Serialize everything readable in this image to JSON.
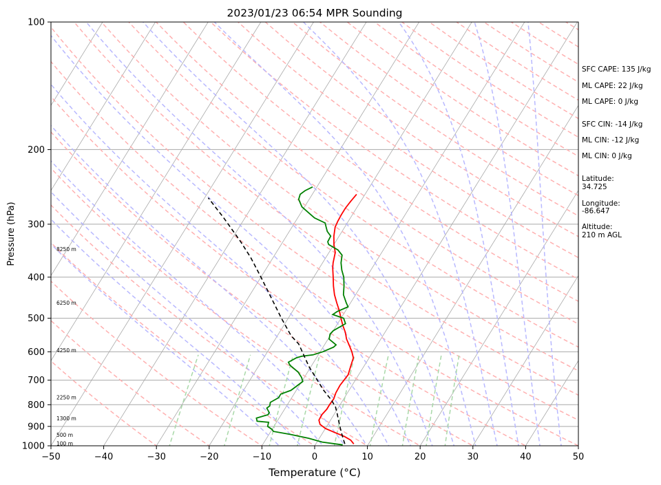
{
  "chart_data": {
    "type": "line",
    "subtype": "skew-t log-p sounding",
    "title": "2023/01/23 06:54 MPR Sounding",
    "xlabel": "Temperature (°C)",
    "ylabel": "Pressure (hPa)",
    "xlim": [
      -50,
      50
    ],
    "ylim": [
      1000,
      100
    ],
    "y_scale": "log",
    "x_ticks": [
      -50,
      -40,
      -30,
      -20,
      -10,
      0,
      10,
      20,
      30,
      40,
      50
    ],
    "x_tick_labels": [
      "−50",
      "−40",
      "−30",
      "−20",
      "−10",
      "0",
      "10",
      "20",
      "30",
      "40",
      "50"
    ],
    "y_ticks": [
      1000,
      900,
      800,
      700,
      600,
      500,
      400,
      300,
      200,
      100
    ],
    "y_tick_labels": [
      "1000",
      "900",
      "800",
      "700",
      "600",
      "500",
      "400",
      "300",
      "200",
      "100"
    ],
    "grid": true,
    "colors": {
      "temperature": "#ff0000",
      "dewpoint": "#008000",
      "parcel": "#000000",
      "isotherm": "#a8a8a8",
      "dry_adiabat": "#ffb0b0",
      "moist_adiabat": "#b8b8ff",
      "mixing_ratio": "#a8d8a8"
    },
    "series": [
      {
        "key": "temperature",
        "points": [
          [
            7.2,
            990
          ],
          [
            6.2,
            970
          ],
          [
            4.5,
            950
          ],
          [
            2.2,
            930
          ],
          [
            0.0,
            910
          ],
          [
            -1.5,
            890
          ],
          [
            -2.2,
            870
          ],
          [
            -2.3,
            845
          ],
          [
            -2.0,
            820
          ],
          [
            -2.0,
            800
          ],
          [
            -1.9,
            775
          ],
          [
            -2.2,
            750
          ],
          [
            -2.3,
            720
          ],
          [
            -2.0,
            680
          ],
          [
            -2.5,
            650
          ],
          [
            -3.0,
            620
          ],
          [
            -4.0,
            600
          ],
          [
            -5.2,
            580
          ],
          [
            -6.5,
            560
          ],
          [
            -7.5,
            540
          ],
          [
            -8.8,
            520
          ],
          [
            -10.0,
            500
          ],
          [
            -11.2,
            480
          ],
          [
            -12.6,
            460
          ],
          [
            -14.0,
            440
          ],
          [
            -15.2,
            420
          ],
          [
            -16.3,
            400
          ],
          [
            -17.5,
            380
          ],
          [
            -18.0,
            370
          ],
          [
            -18.8,
            350
          ],
          [
            -20.0,
            335
          ],
          [
            -21.0,
            320
          ],
          [
            -21.8,
            305
          ],
          [
            -22.0,
            295
          ],
          [
            -22.1,
            285
          ],
          [
            -22.1,
            275
          ],
          [
            -21.9,
            265
          ],
          [
            -21.6,
            255
          ]
        ]
      },
      {
        "key": "dewpoint",
        "points": [
          [
            5.2,
            995
          ],
          [
            1.0,
            980
          ],
          [
            -2.0,
            960
          ],
          [
            -6.0,
            940
          ],
          [
            -9.5,
            925
          ],
          [
            -10.0,
            915
          ],
          [
            -11.2,
            900
          ],
          [
            -11.5,
            880
          ],
          [
            -13.8,
            875
          ],
          [
            -14.3,
            860
          ],
          [
            -12.5,
            845
          ],
          [
            -12.5,
            835
          ],
          [
            -13.5,
            815
          ],
          [
            -13.2,
            805
          ],
          [
            -13.5,
            790
          ],
          [
            -12.5,
            770
          ],
          [
            -12.5,
            755
          ],
          [
            -11.0,
            740
          ],
          [
            -9.8,
            705
          ],
          [
            -10.5,
            690
          ],
          [
            -11.8,
            670
          ],
          [
            -14.2,
            645
          ],
          [
            -14.8,
            635
          ],
          [
            -13.8,
            620
          ],
          [
            -13.0,
            615
          ],
          [
            -11.0,
            610
          ],
          [
            -9.5,
            600
          ],
          [
            -8.0,
            585
          ],
          [
            -7.8,
            578
          ],
          [
            -9.8,
            560
          ],
          [
            -10.2,
            545
          ],
          [
            -10.0,
            535
          ],
          [
            -8.5,
            515
          ],
          [
            -9.5,
            500
          ],
          [
            -12.0,
            490
          ],
          [
            -11.5,
            482
          ],
          [
            -10.0,
            470
          ],
          [
            -10.8,
            460
          ],
          [
            -12.3,
            440
          ],
          [
            -13.2,
            420
          ],
          [
            -14.3,
            400
          ],
          [
            -15.5,
            385
          ],
          [
            -16.5,
            370
          ],
          [
            -17.2,
            355
          ],
          [
            -18.6,
            345
          ],
          [
            -21.0,
            335
          ],
          [
            -21.5,
            330
          ],
          [
            -21.6,
            320
          ],
          [
            -22.8,
            312
          ],
          [
            -23.5,
            305
          ],
          [
            -24.2,
            298
          ],
          [
            -26.8,
            290
          ],
          [
            -28.5,
            282
          ],
          [
            -30.5,
            273
          ],
          [
            -32.0,
            262
          ],
          [
            -32.3,
            255
          ],
          [
            -31.8,
            250
          ],
          [
            -30.8,
            245
          ]
        ]
      },
      {
        "key": "parcel",
        "points": [
          [
            5.5,
            990
          ],
          [
            4.5,
            960
          ],
          [
            3.5,
            930
          ],
          [
            2.5,
            900
          ],
          [
            1.5,
            870
          ],
          [
            0.5,
            840
          ],
          [
            -0.6,
            810
          ],
          [
            -2.2,
            780
          ],
          [
            -4.8,
            740
          ],
          [
            -7.2,
            700
          ],
          [
            -10.4,
            650
          ],
          [
            -13.4,
            600
          ],
          [
            -15.0,
            575
          ],
          [
            -17.4,
            550
          ],
          [
            -21.3,
            500
          ],
          [
            -25.4,
            450
          ],
          [
            -30.0,
            400
          ],
          [
            -34.2,
            360
          ],
          [
            -38.0,
            330
          ],
          [
            -44.0,
            290
          ],
          [
            -49.3,
            260
          ]
        ]
      }
    ],
    "height_labels": [
      {
        "label": "100 m",
        "p": 989
      },
      {
        "label": "500 m",
        "p": 944
      },
      {
        "label": "1300 m",
        "p": 862
      },
      {
        "label": "2250 m",
        "p": 770
      },
      {
        "label": "4250 m",
        "p": 596
      },
      {
        "label": "6250 m",
        "p": 460
      },
      {
        "label": "8250 m",
        "p": 344
      }
    ],
    "annotations": [
      "SFC CAPE: 135 J/kg",
      "ML CAPE: 22 J/kg",
      "ML CAPE: 0 J/kg",
      "SFC CIN: -14 J/kg",
      "ML CIN: -12 J/kg",
      "ML CIN: 0 J/kg",
      "Latitude:",
      "34.725",
      "Longitude:",
      "-86.647",
      "Altitude:",
      "210 m AGL"
    ]
  }
}
